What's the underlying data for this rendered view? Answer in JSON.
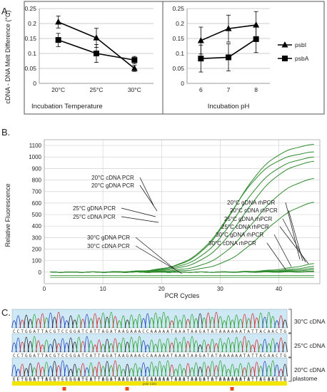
{
  "panels": {
    "a_label": "A.",
    "b_label": "B.",
    "c_label": "C."
  },
  "chart_data": [
    {
      "id": "A-left",
      "type": "line",
      "ylabel": "cDNA - DNA Melt Difference (°C)",
      "xlabel": "Incubation Temperature",
      "categories": [
        "20°C",
        "25°C",
        "30°C"
      ],
      "ylim": [
        0,
        0.25
      ],
      "yticks": [
        "0",
        "0.05",
        "0.1",
        "0.15",
        "0.2",
        "0.25"
      ],
      "grid": true,
      "series": [
        {
          "name": "psbI",
          "marker": "triangle",
          "values": [
            0.205,
            0.152,
            0.05
          ],
          "err": [
            0.02,
            0.032,
            0.01
          ]
        },
        {
          "name": "psbA",
          "marker": "square",
          "values": [
            0.145,
            0.1,
            0.078
          ],
          "err": [
            0.022,
            0.03,
            0.012
          ]
        }
      ]
    },
    {
      "id": "A-right",
      "type": "line",
      "xlabel": "Incubation pH",
      "categories": [
        "6",
        "7",
        "8"
      ],
      "ylim": [
        0,
        0.25
      ],
      "yticks": [
        "0",
        "0.05",
        "0.1",
        "0.15",
        "0.2",
        "0.25"
      ],
      "grid": true,
      "legend": "right",
      "series": [
        {
          "name": "psbI",
          "marker": "triangle",
          "values": [
            0.143,
            0.183,
            0.195
          ],
          "err": [
            0.045,
            0.045,
            0.045
          ]
        },
        {
          "name": "psbA",
          "marker": "square",
          "values": [
            0.083,
            0.087,
            0.148
          ],
          "err": [
            0.045,
            0.045,
            0.045
          ]
        }
      ]
    },
    {
      "id": "B",
      "type": "line",
      "ylabel": "Relative Fluorescence",
      "xlabel": "PCR Cycles",
      "xlim": [
        0,
        47
      ],
      "xticks": [
        "0",
        "10",
        "20",
        "30",
        "40"
      ],
      "ylim": [
        -100,
        1150
      ],
      "yticks": [
        "0",
        "100",
        "200",
        "300",
        "400",
        "500",
        "600",
        "700",
        "800",
        "900",
        "1000",
        "1100"
      ],
      "grid": true,
      "color": "#2e8b2e",
      "curve_labels": [
        "20°C cDNA PCR",
        "20°C gDNA PCR",
        "25°C gDNA PCR",
        "25°C cDNA PCR",
        "30°C gDNA PCR",
        "30°C cDNA PCR",
        "20°C gDNA rhPCR",
        "20°C cDNA rhPCR",
        "25°C gDNA rhPCR",
        "25°C cDNA rhPCR",
        "30°C gDNA rhPCR",
        "30°C cDNA rhPCR"
      ],
      "series": [
        {
          "name": "20°C cDNA PCR",
          "threshold_cycle": 20.5,
          "plateau": 1130
        },
        {
          "name": "20°C gDNA PCR",
          "threshold_cycle": 20.0,
          "plateau": 1060
        },
        {
          "name": "25°C gDNA PCR",
          "threshold_cycle": 21.0,
          "plateau": 1020
        },
        {
          "name": "25°C cDNA PCR",
          "threshold_cycle": 22.0,
          "plateau": 990
        },
        {
          "name": "30°C gDNA PCR",
          "threshold_cycle": 23.5,
          "plateau": 850
        },
        {
          "name": "30°C cDNA PCR",
          "threshold_cycle": 25.0,
          "plateau": 650
        },
        {
          "name": "20°C gDNA rhPCR",
          "threshold_cycle": 33.0,
          "plateau": 130
        },
        {
          "name": "20°C cDNA rhPCR",
          "threshold_cycle": 34.0,
          "plateau": 100
        },
        {
          "name": "25°C gDNA rhPCR",
          "threshold_cycle": 35.0,
          "plateau": 80
        },
        {
          "name": "25°C cDNA rhPCR",
          "threshold_cycle": 36.0,
          "plateau": 60
        },
        {
          "name": "30°C gDNA rhPCR",
          "threshold_cycle": 38.0,
          "plateau": 35
        },
        {
          "name": "30°C cDNA rhPCR",
          "threshold_cycle": 40.0,
          "plateau": 20
        }
      ]
    }
  ],
  "chromatograms": {
    "sequence": "CCTGGATTACGTCCGGATCATTAGATAAGAAACCAAAAATAAATAAGATATAAAAAATATTACAACTG",
    "traces": [
      {
        "label": "30°C cDNA"
      },
      {
        "label": "25°C cDNA"
      },
      {
        "label": "20°C cDNA"
      }
    ],
    "plastome_label": "plastome",
    "feature_label": "psbI CDS",
    "colors": {
      "A": "#2ca02c",
      "C": "#1f3fbf",
      "G": "#222222",
      "T": "#d62728",
      "feature": "#f2e600",
      "marker": "#e8491e",
      "highlight": "#cfe8f5"
    }
  }
}
